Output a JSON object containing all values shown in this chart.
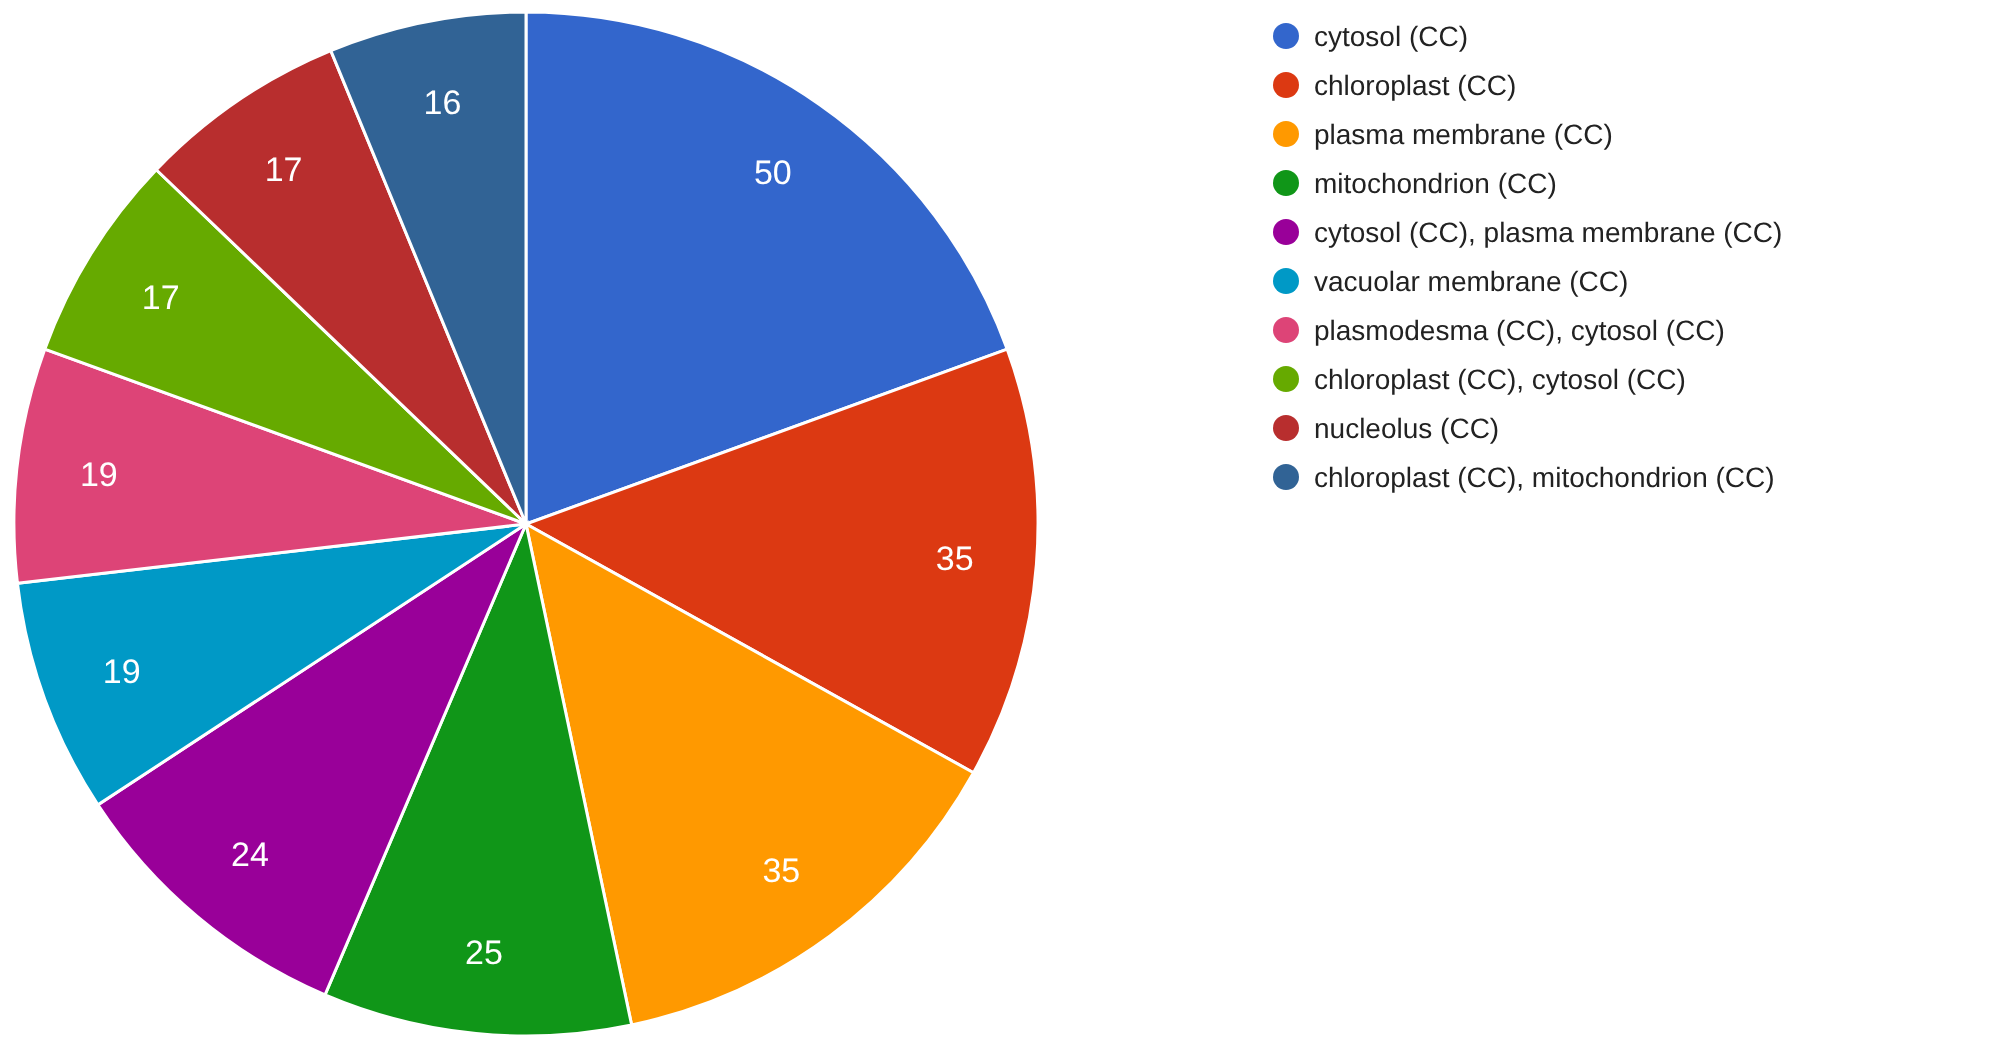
{
  "chart_data": {
    "type": "pie",
    "categories": [
      "cytosol (CC)",
      "chloroplast (CC)",
      "plasma membrane (CC)",
      "mitochondrion (CC)",
      "cytosol (CC), plasma membrane (CC)",
      "vacuolar membrane (CC)",
      "plasmodesma (CC), cytosol (CC)",
      "chloroplast (CC), cytosol (CC)",
      "nucleolus (CC)",
      "chloroplast (CC), mitochondrion (CC)"
    ],
    "values": [
      50,
      35,
      35,
      25,
      24,
      19,
      19,
      17,
      17,
      16
    ],
    "colors": [
      "#3366cc",
      "#dc3912",
      "#ff9900",
      "#109618",
      "#990099",
      "#0099c6",
      "#dd4477",
      "#66aa00",
      "#b82e2e",
      "#316395"
    ],
    "data_labels": true,
    "legend": "right"
  }
}
